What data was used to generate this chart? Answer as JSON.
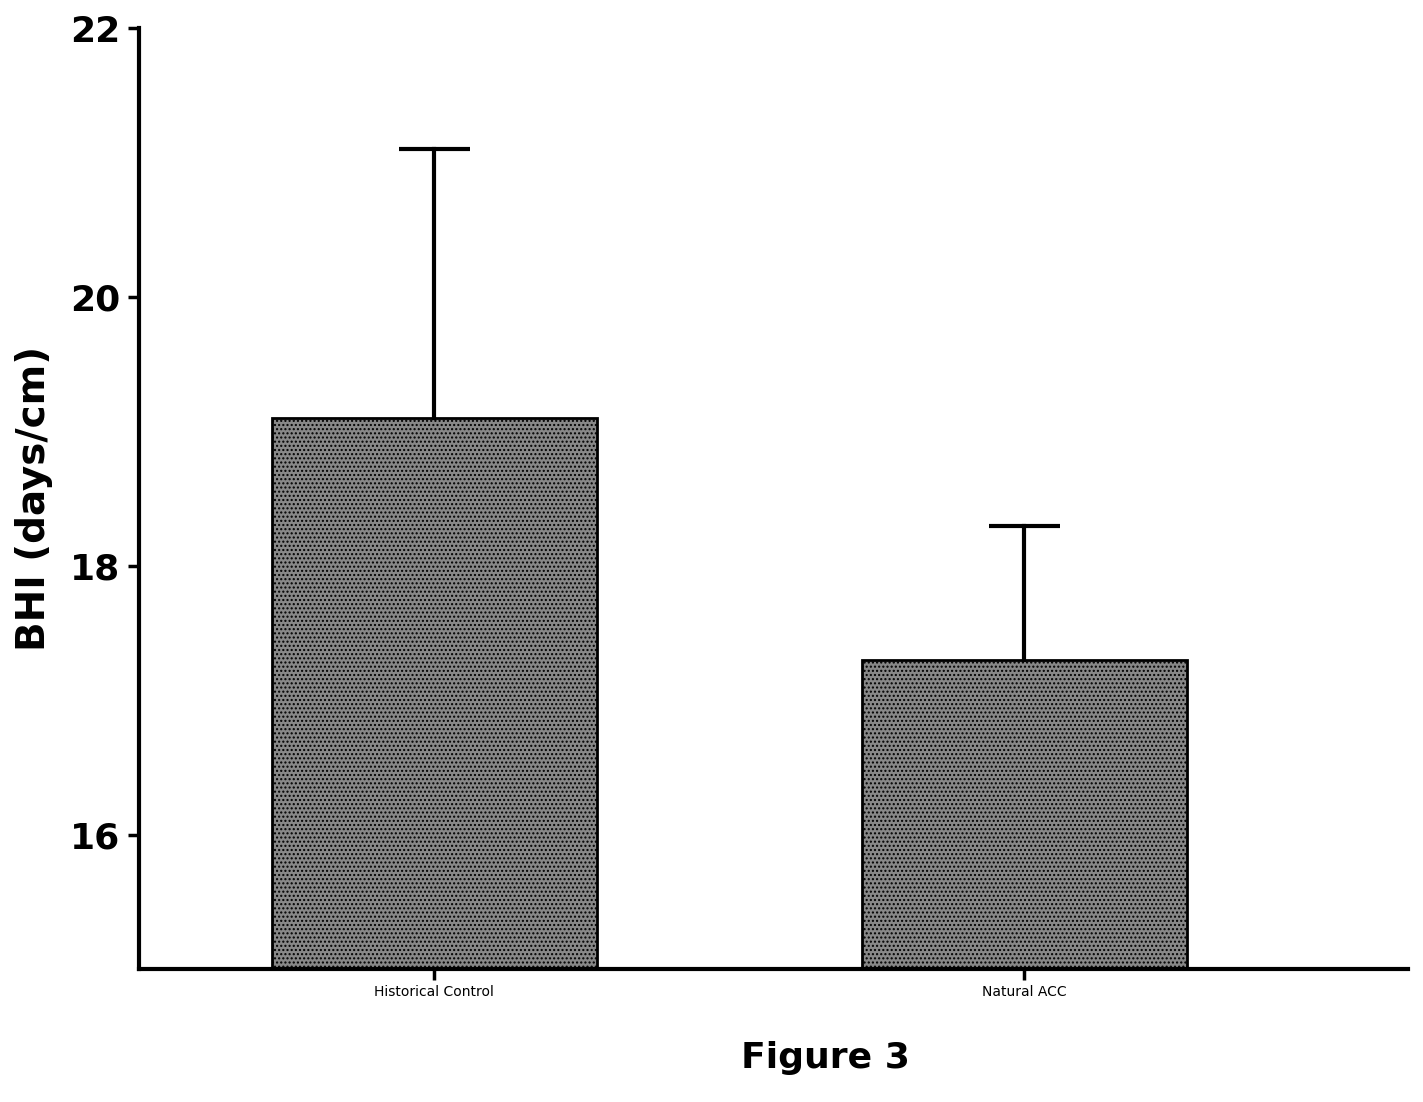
{
  "categories": [
    "Historical Control",
    "Natural ACC"
  ],
  "values": [
    19.1,
    17.3
  ],
  "errors_upper": [
    2.0,
    1.0
  ],
  "ylim": [
    15.0,
    22.0
  ],
  "ymin_bar": 15.0,
  "yticks": [
    16,
    18,
    20,
    22
  ],
  "ylabel": "BHI (days/cm)",
  "figure_label": "Figure 3",
  "bar_color": "#888888",
  "bar_hatch": "....",
  "bar_width": 0.55,
  "bar_positions": [
    1,
    2
  ],
  "xlim": [
    0.5,
    2.65
  ],
  "capsize": 12,
  "error_linewidth": 3.0,
  "bar_edgecolor": "#000000",
  "background_color": "#ffffff",
  "ylabel_fontsize": 28,
  "tick_fontsize": 26,
  "xlabel_fontsize": 26,
  "figure_label_fontsize": 26,
  "spine_linewidth": 3.0
}
